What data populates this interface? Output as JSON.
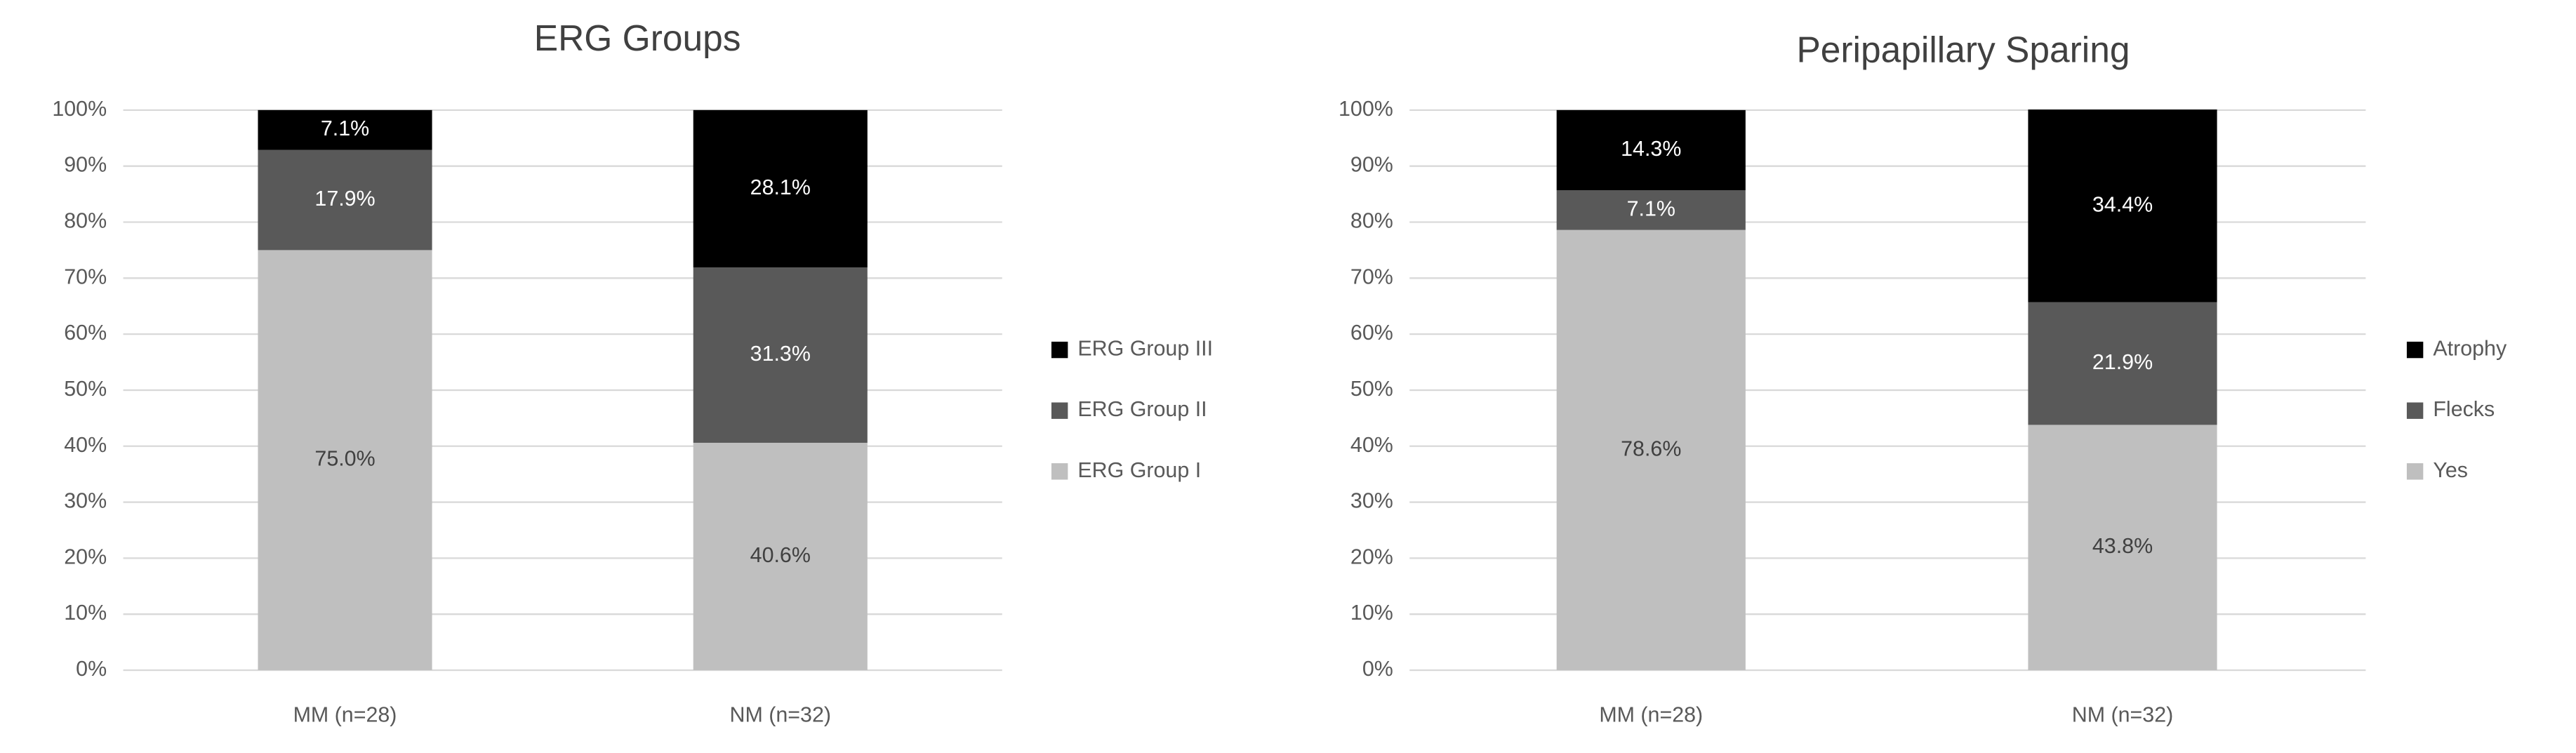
{
  "chart_data": [
    {
      "type": "stacked_bar",
      "title": "ERG Groups",
      "categories": [
        "MM (n=28)",
        "NM (n=32)"
      ],
      "series": [
        {
          "name": "ERG Group I",
          "color": "#bfbfbf",
          "values": [
            75.0,
            40.6
          ],
          "value_labels": [
            "75.0%",
            "40.6%"
          ]
        },
        {
          "name": "ERG Group II",
          "color": "#595959",
          "values": [
            17.9,
            31.3
          ],
          "value_labels": [
            "17.9%",
            "31.3%"
          ]
        },
        {
          "name": "ERG Group III",
          "color": "#000000",
          "values": [
            7.1,
            28.1
          ],
          "value_labels": [
            "7.1%",
            "28.1%"
          ]
        }
      ],
      "ylim": [
        0,
        100
      ],
      "yticks": [
        {
          "value": 0,
          "label": "0%"
        },
        {
          "value": 10,
          "label": "10%"
        },
        {
          "value": 20,
          "label": "20%"
        },
        {
          "value": 30,
          "label": "30%"
        },
        {
          "value": 40,
          "label": "40%"
        },
        {
          "value": 50,
          "label": "50%"
        },
        {
          "value": 60,
          "label": "60%"
        },
        {
          "value": 70,
          "label": "70%"
        },
        {
          "value": 80,
          "label": "80%"
        },
        {
          "value": 90,
          "label": "90%"
        },
        {
          "value": 100,
          "label": "100%"
        }
      ],
      "grid": true,
      "legend": "right"
    },
    {
      "type": "stacked_bar",
      "title": "Peripapillary Sparing",
      "categories": [
        "MM (n=28)",
        "NM (n=32)"
      ],
      "series": [
        {
          "name": "Yes",
          "color": "#bfbfbf",
          "values": [
            78.6,
            43.8
          ],
          "value_labels": [
            "78.6%",
            "43.8%"
          ]
        },
        {
          "name": "Flecks",
          "color": "#595959",
          "values": [
            7.1,
            21.9
          ],
          "value_labels": [
            "7.1%",
            "21.9%"
          ]
        },
        {
          "name": "Atrophy",
          "color": "#000000",
          "values": [
            14.3,
            34.4
          ],
          "value_labels": [
            "14.3%",
            "34.4%"
          ]
        }
      ],
      "ylim": [
        0,
        100
      ],
      "yticks": [
        {
          "value": 0,
          "label": "0%"
        },
        {
          "value": 10,
          "label": "10%"
        },
        {
          "value": 20,
          "label": "20%"
        },
        {
          "value": 30,
          "label": "30%"
        },
        {
          "value": 40,
          "label": "40%"
        },
        {
          "value": 50,
          "label": "50%"
        },
        {
          "value": 60,
          "label": "60%"
        },
        {
          "value": 70,
          "label": "70%"
        },
        {
          "value": 80,
          "label": "80%"
        },
        {
          "value": 90,
          "label": "90%"
        },
        {
          "value": 100,
          "label": "100%"
        }
      ],
      "grid": true,
      "legend": "right"
    }
  ]
}
